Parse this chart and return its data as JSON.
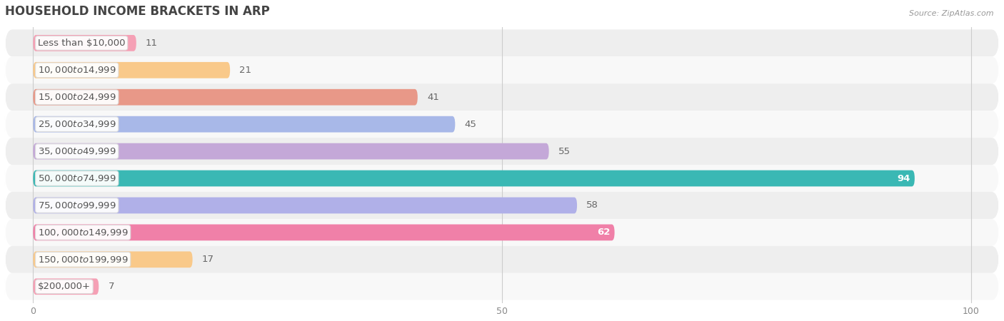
{
  "title": "HOUSEHOLD INCOME BRACKETS IN ARP",
  "source": "Source: ZipAtlas.com",
  "categories": [
    "Less than $10,000",
    "$10,000 to $14,999",
    "$15,000 to $24,999",
    "$25,000 to $34,999",
    "$35,000 to $49,999",
    "$50,000 to $74,999",
    "$75,000 to $99,999",
    "$100,000 to $149,999",
    "$150,000 to $199,999",
    "$200,000+"
  ],
  "values": [
    11,
    21,
    41,
    45,
    55,
    94,
    58,
    62,
    17,
    7
  ],
  "bar_colors": [
    "#f5a0b5",
    "#f9c98a",
    "#e89888",
    "#a8b8e8",
    "#c4a8d8",
    "#3ab8b4",
    "#b0b0e8",
    "#f080a8",
    "#f9c98a",
    "#f5a0b5"
  ],
  "row_bg_even": "#eeeeee",
  "row_bg_odd": "#f8f8f8",
  "xlim_min": -3,
  "xlim_max": 103,
  "xticks": [
    0,
    50,
    100
  ],
  "background_color": "#ffffff",
  "title_fontsize": 12,
  "label_fontsize": 9.5,
  "value_fontsize": 9.5,
  "white_text_values": [
    94,
    62
  ],
  "bar_height": 0.6
}
